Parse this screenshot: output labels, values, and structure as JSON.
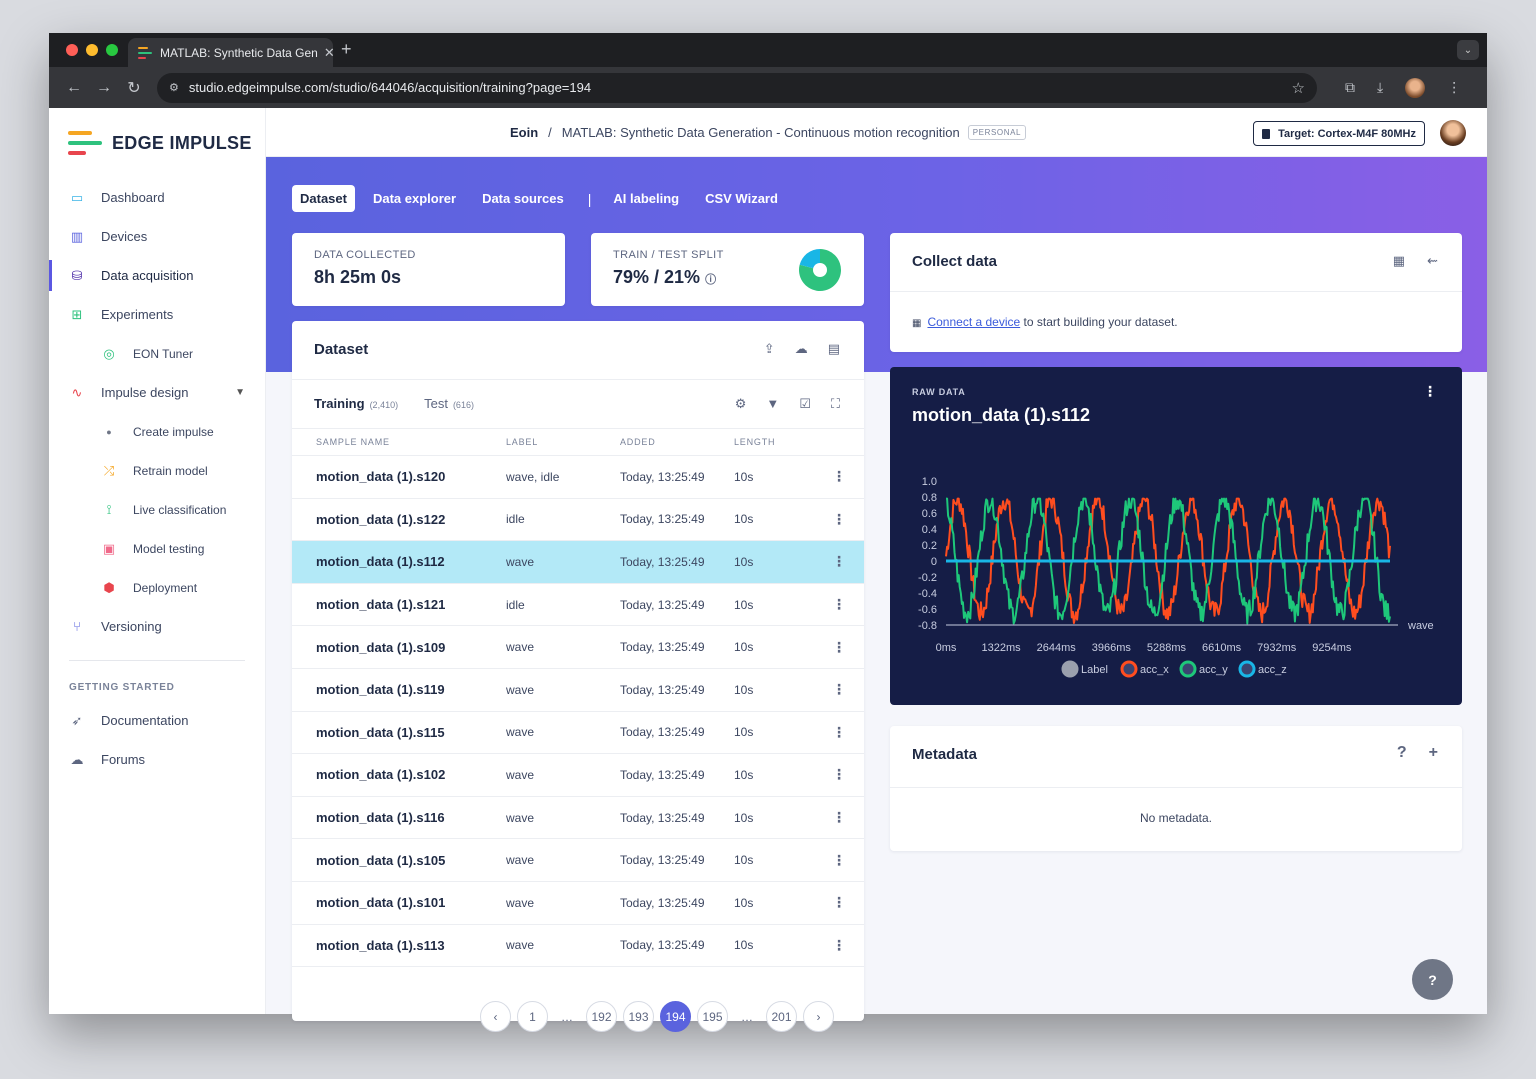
{
  "browser": {
    "tab_title": "MATLAB: Synthetic Data Gen",
    "url": "studio.edgeimpulse.com/studio/644046/acquisition/training?page=194"
  },
  "brand": {
    "name": "EDGE IMPULSE"
  },
  "sidebar": {
    "items": [
      {
        "label": "Dashboard",
        "icon": "monitor-icon",
        "color": "#3cb4e6"
      },
      {
        "label": "Devices",
        "icon": "chip-icon",
        "color": "#5a63de"
      },
      {
        "label": "Data acquisition",
        "icon": "database-icon",
        "color": "#4b2aa8"
      },
      {
        "label": "Experiments",
        "icon": "grid-icon",
        "color": "#2ec27e"
      },
      {
        "label": "EON Tuner",
        "icon": "compass-icon",
        "color": "#2ec27e"
      },
      {
        "label": "Impulse design",
        "icon": "pulse-icon",
        "color": "#e8454d"
      },
      {
        "label": "Create impulse",
        "icon": "dot-icon",
        "color": "#6f7686"
      },
      {
        "label": "Retrain model",
        "icon": "shuffle-icon",
        "color": "#f5a623"
      },
      {
        "label": "Live classification",
        "icon": "nodes-icon",
        "color": "#2ec27e"
      },
      {
        "label": "Model testing",
        "icon": "clipboard-icon",
        "color": "#f06a8a"
      },
      {
        "label": "Deployment",
        "icon": "cube-icon",
        "color": "#e8454d"
      },
      {
        "label": "Versioning",
        "icon": "branch-icon",
        "color": "#5a63de"
      }
    ],
    "getting_started_title": "GETTING STARTED",
    "getting_started": [
      {
        "label": "Documentation",
        "icon": "rocket-icon"
      },
      {
        "label": "Forums",
        "icon": "chat-icon"
      }
    ]
  },
  "header": {
    "user": "Eoin",
    "project": "MATLAB: Synthetic Data Generation - Continuous motion recognition",
    "badge": "PERSONAL",
    "target": "Target: Cortex-M4F 80MHz"
  },
  "tabs": [
    "Dataset",
    "Data explorer",
    "Data sources",
    "AI labeling",
    "CSV Wizard"
  ],
  "stats": {
    "collected_label": "DATA COLLECTED",
    "collected_value": "8h 25m 0s",
    "split_label": "TRAIN / TEST SPLIT",
    "split_value": "79% / 21%",
    "train_fraction": 0.79
  },
  "dataset": {
    "title": "Dataset",
    "training_label": "Training",
    "training_count": "(2,410)",
    "test_label": "Test",
    "test_count": "(616)",
    "columns": [
      "SAMPLE NAME",
      "LABEL",
      "ADDED",
      "LENGTH"
    ],
    "rows": [
      {
        "name": "motion_data (1).s120",
        "label": "wave, idle",
        "added": "Today, 13:25:49",
        "length": "10s"
      },
      {
        "name": "motion_data (1).s122",
        "label": "idle",
        "added": "Today, 13:25:49",
        "length": "10s"
      },
      {
        "name": "motion_data (1).s112",
        "label": "wave",
        "added": "Today, 13:25:49",
        "length": "10s"
      },
      {
        "name": "motion_data (1).s121",
        "label": "idle",
        "added": "Today, 13:25:49",
        "length": "10s"
      },
      {
        "name": "motion_data (1).s109",
        "label": "wave",
        "added": "Today, 13:25:49",
        "length": "10s"
      },
      {
        "name": "motion_data (1).s119",
        "label": "wave",
        "added": "Today, 13:25:49",
        "length": "10s"
      },
      {
        "name": "motion_data (1).s115",
        "label": "wave",
        "added": "Today, 13:25:49",
        "length": "10s"
      },
      {
        "name": "motion_data (1).s102",
        "label": "wave",
        "added": "Today, 13:25:49",
        "length": "10s"
      },
      {
        "name": "motion_data (1).s116",
        "label": "wave",
        "added": "Today, 13:25:49",
        "length": "10s"
      },
      {
        "name": "motion_data (1).s105",
        "label": "wave",
        "added": "Today, 13:25:49",
        "length": "10s"
      },
      {
        "name": "motion_data (1).s101",
        "label": "wave",
        "added": "Today, 13:25:49",
        "length": "10s"
      },
      {
        "name": "motion_data (1).s113",
        "label": "wave",
        "added": "Today, 13:25:49",
        "length": "10s"
      }
    ],
    "selected_index": 2,
    "pages": [
      "1",
      "…",
      "192",
      "193",
      "194",
      "195",
      "…",
      "201"
    ],
    "current_page": "194"
  },
  "collect": {
    "title": "Collect data",
    "link": "Connect a device",
    "text": " to start building your dataset."
  },
  "raw": {
    "label": "RAW DATA",
    "name": "motion_data (1).s112"
  },
  "chart_data": {
    "type": "line",
    "title": "",
    "ylim": [
      -0.8,
      1.0
    ],
    "yticks": [
      "1.0",
      "0.8",
      "0.6",
      "0.4",
      "0.2",
      "0",
      "-0.2",
      "-0.4",
      "-0.6",
      "-0.8"
    ],
    "xticks": [
      "0ms",
      "1322ms",
      "2644ms",
      "3966ms",
      "5288ms",
      "6610ms",
      "7932ms",
      "9254ms"
    ],
    "x_annotation": "wave",
    "legend": [
      "Label",
      "acc_x",
      "acc_y",
      "acc_z"
    ],
    "colors": {
      "Label": "#9aa0ad",
      "acc_x": "#ff4d1f",
      "acc_y": "#1ec77a",
      "acc_z": "#19b6e6"
    },
    "series": [
      {
        "name": "acc_x",
        "approx": "oscillation",
        "amplitude": 0.75,
        "cycles": 9.5,
        "phase": 0.0
      },
      {
        "name": "acc_y",
        "approx": "oscillation",
        "amplitude": 0.75,
        "cycles": 9.5,
        "phase": 1.9
      },
      {
        "name": "acc_z",
        "approx": "constant",
        "value": 0.0
      }
    ]
  },
  "metadata": {
    "title": "Metadata",
    "empty": "No metadata."
  }
}
